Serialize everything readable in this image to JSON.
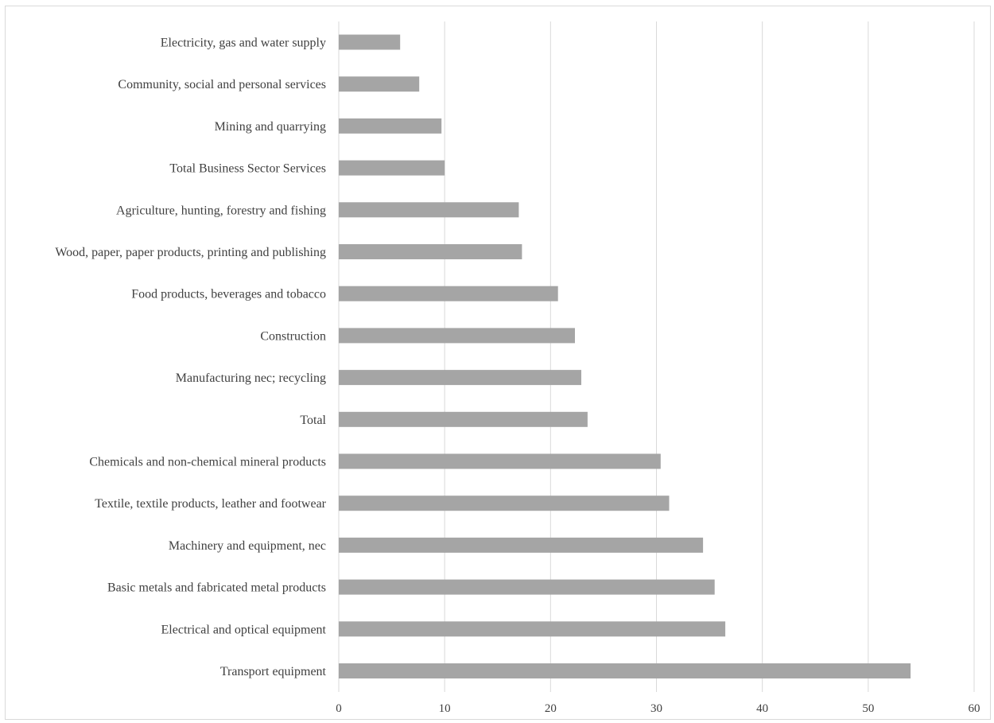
{
  "chart_data": {
    "type": "bar",
    "orientation": "horizontal",
    "title": "",
    "xlabel": "",
    "ylabel": "",
    "categories": [
      "Electricity, gas and water supply",
      "Community, social and personal services",
      "Mining and quarrying",
      "Total Business Sector Services",
      "Agriculture, hunting, forestry and fishing",
      "Wood, paper, paper products, printing and publishing",
      "Food products, beverages and tobacco",
      "Construction",
      "Manufacturing nec; recycling",
      "Total",
      "Chemicals and non-chemical mineral products",
      "Textile, textile products, leather and footwear",
      "Machinery and equipment, nec",
      "Basic metals and fabricated metal products",
      "Electrical and optical equipment",
      "Transport equipment"
    ],
    "values": [
      5.8,
      7.6,
      9.7,
      10.0,
      17.0,
      17.3,
      20.7,
      22.3,
      22.9,
      23.5,
      30.4,
      31.2,
      34.4,
      35.5,
      36.5,
      54.0
    ],
    "xlim": [
      0,
      60
    ],
    "xticks": [
      0,
      10,
      20,
      30,
      40,
      50,
      60
    ],
    "grid": "vertical",
    "legend": "none",
    "colors": {
      "bar": "#a5a5a5",
      "grid": "#d9d9d9",
      "text": "#404040"
    }
  }
}
